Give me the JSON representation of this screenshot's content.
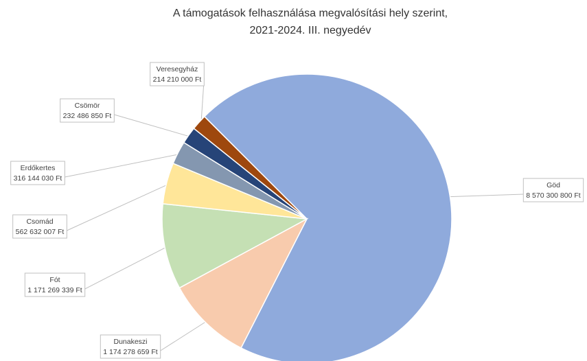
{
  "chart_data": {
    "type": "pie",
    "title": [
      "A támogatások felhasználása megvalósítási hely szerint,",
      "2021-2024. III. negyedév"
    ],
    "categories": [
      "Göd",
      "Dunakeszi",
      "Fót",
      "Csomád",
      "Erdőkertes",
      "Csömör",
      "Veresegyház"
    ],
    "values": [
      8570300800,
      1174278659,
      1171269339,
      562632007,
      316144030,
      232486850,
      214210000
    ],
    "value_labels": [
      "8 570 300 800 Ft",
      "1 174 278 659 Ft",
      "1 171 269 339 Ft",
      "562 632 007 Ft",
      "316 144 030 Ft",
      "232 486 850 Ft",
      "214 210 000 Ft"
    ],
    "colors": [
      "#8faadc",
      "#f8cbad",
      "#c5e0b4",
      "#ffe699",
      "#8497b0",
      "#264478",
      "#9e480e"
    ]
  }
}
